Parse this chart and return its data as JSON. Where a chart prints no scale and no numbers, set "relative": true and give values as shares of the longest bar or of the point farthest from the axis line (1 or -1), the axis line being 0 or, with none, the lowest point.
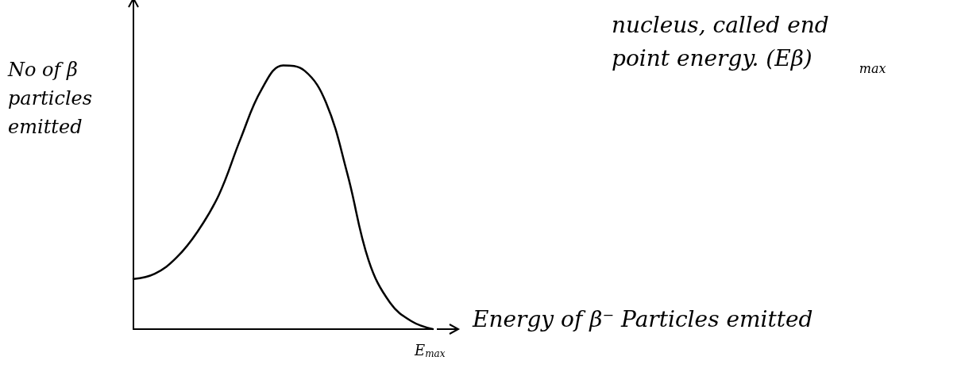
{
  "chart_data": {
    "type": "line",
    "relative": true,
    "ylabel": "No of β particles emitted",
    "xlabel": "Energy of β⁻ Particles emitted",
    "annotations": [
      "nucleus, called end point energy. (Eβ)$_{max}$",
      "E$_{max}$"
    ],
    "categories": [
      null,
      null,
      null,
      null,
      null,
      null,
      null,
      null,
      null,
      null,
      null,
      null,
      null,
      null,
      null
    ],
    "series": [
      {
        "color": "#000000",
        "values": [
          0.19,
          0.21,
          0.27,
          0.37,
          0.51,
          0.72,
          0.91,
          1.0,
          0.98,
          0.86,
          0.59,
          0.26,
          0.1,
          0.03,
          0.0
        ]
      }
    ],
    "marker": "none",
    "line_style": "solid",
    "grid": false
  }
}
